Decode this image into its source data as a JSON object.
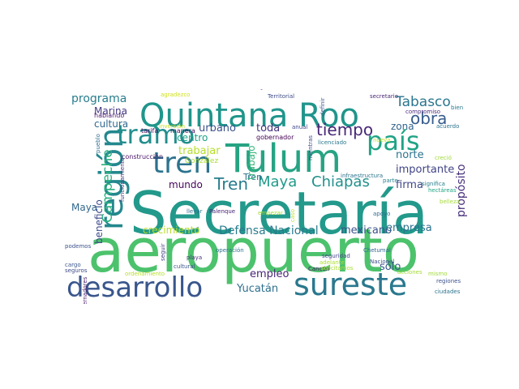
{
  "words": [
    {
      "text": "aeropuerto",
      "color": "#4cc26c"
    },
    {
      "text": "Secretaría",
      "color": "#22998b"
    },
    {
      "text": "Tulum",
      "color": "#26a383"
    },
    {
      "text": "Quintana Roo",
      "color": "#1f958b"
    },
    {
      "text": "sureste",
      "color": "#2a788e"
    },
    {
      "text": "desarrollo",
      "color": "#39568c"
    },
    {
      "text": "región",
      "color": "#23888e"
    },
    {
      "text": "tren",
      "color": "#2c738e"
    },
    {
      "text": "tramo",
      "color": "#218e8d"
    },
    {
      "text": "país",
      "color": "#20a386"
    },
    {
      "text": "Tabasco",
      "color": "#2a768e"
    },
    {
      "text": "obra",
      "color": "#365c8d"
    },
    {
      "text": "tiempo",
      "color": "#482878"
    },
    {
      "text": "Tren",
      "color": "#287c8e"
    },
    {
      "text": "Maya",
      "color": "#1f9a8a"
    },
    {
      "text": "Chiapas",
      "color": "#21918c"
    },
    {
      "text": "Campeche",
      "color": "#2ab07f"
    },
    {
      "text": "programa",
      "color": "#287d8e"
    },
    {
      "text": "Marina",
      "color": "#443983"
    },
    {
      "text": "cultura",
      "color": "#31688e"
    },
    {
      "text": "urbano",
      "color": "#3b528b"
    },
    {
      "text": "toda",
      "color": "#46327e"
    },
    {
      "text": "zona",
      "color": "#33638d"
    },
    {
      "text": "norte",
      "color": "#2c728e"
    },
    {
      "text": "importante",
      "color": "#414487"
    },
    {
      "text": "firma",
      "color": "#3f4788"
    },
    {
      "text": "propósito",
      "color": "#472d7b"
    },
    {
      "text": "trabajar",
      "color": "#b5de2b"
    },
    {
      "text": "centro",
      "color": "#1fa188"
    },
    {
      "text": "González",
      "color": "#addc30"
    },
    {
      "text": "Tren",
      "color": "#2d718e"
    },
    {
      "text": "mundo",
      "color": "#450559"
    },
    {
      "text": "trabajo",
      "color": "#35b779"
    },
    {
      "text": "Maya",
      "color": "#31688e"
    },
    {
      "text": "beneficio",
      "color": "#3e4989"
    },
    {
      "text": "crecimiento",
      "color": "#b8de29"
    },
    {
      "text": "Defensa Nacional",
      "color": "#297b8e"
    },
    {
      "text": "mexicano",
      "color": "#3b528b"
    },
    {
      "text": "empresa",
      "color": "#2c718e"
    },
    {
      "text": "empleo",
      "color": "#482475"
    },
    {
      "text": "sólo",
      "color": "#39568c"
    },
    {
      "text": "Yucatán",
      "color": "#2e6f8e"
    },
    {
      "text": "gobernador",
      "color": "#440154"
    },
    {
      "text": "construcción",
      "color": "#481467"
    },
    {
      "text": "tarifa",
      "color": "#470e61"
    },
    {
      "text": "manera",
      "color": "#471063"
    },
    {
      "text": "agradezco",
      "color": "#d0e11c"
    },
    {
      "text": "entregar",
      "color": "#46075a"
    },
    {
      "text": "Territorial",
      "color": "#3e4a89"
    },
    {
      "text": "secretario",
      "color": "#482576"
    },
    {
      "text": "bien",
      "color": "#2a788e"
    },
    {
      "text": "compromiso",
      "color": "#472a7a"
    },
    {
      "text": "acuerdo",
      "color": "#2c738e"
    },
    {
      "text": "hablando",
      "color": "#481a6c"
    },
    {
      "text": "anual",
      "color": "#3e4989"
    },
    {
      "text": "definir",
      "color": "#3b528b"
    },
    {
      "text": "inversión",
      "color": "#c2df23"
    },
    {
      "text": "pueblo",
      "color": "#2e6e8e"
    },
    {
      "text": "infraestructura",
      "color": "#2c738e"
    },
    {
      "text": "parte",
      "color": "#26828e"
    },
    {
      "text": "significa",
      "color": "#277f8e"
    },
    {
      "text": "creció",
      "color": "#9fda3a"
    },
    {
      "text": "hectáreas",
      "color": "#21a585"
    },
    {
      "text": "belleza",
      "color": "#a5db36"
    },
    {
      "text": "mientras",
      "color": "#3f4788"
    },
    {
      "text": "nueva",
      "color": "#c8e020"
    },
    {
      "text": "licenciado",
      "color": "#2a788e"
    },
    {
      "text": "Fuerzas Armadas",
      "color": "#a8db34"
    },
    {
      "text": "funcionamiento",
      "color": "#46327e"
    },
    {
      "text": "llevar",
      "color": "#2f6c8e"
    },
    {
      "text": "empezar",
      "color": "#a2da37"
    },
    {
      "text": "caso",
      "color": "#bddf26"
    },
    {
      "text": "apoyo",
      "color": "#2e6e8e"
    },
    {
      "text": "podemos",
      "color": "#3b528b"
    },
    {
      "text": "seguir",
      "color": "#443b84"
    },
    {
      "text": "playa",
      "color": "#472f7d"
    },
    {
      "text": "Palenque",
      "color": "#482475"
    },
    {
      "text": "operación",
      "color": "#2e6f8e"
    },
    {
      "text": "seguridad",
      "color": "#414487"
    },
    {
      "text": "Chetumal",
      "color": "#31688e"
    },
    {
      "text": "Nacional",
      "color": "#3b528b"
    },
    {
      "text": "adelante",
      "color": "#addc30"
    },
    {
      "text": "Cancún",
      "color": "#481467"
    },
    {
      "text": "solicitamos",
      "color": "#aadc32"
    },
    {
      "text": "acciones",
      "color": "#a5db36"
    },
    {
      "text": "mismo",
      "color": "#a0da39"
    },
    {
      "text": "regiones",
      "color": "#3b528b"
    },
    {
      "text": "ciudades",
      "color": "#2c738e"
    },
    {
      "text": "cargo",
      "color": "#39568c"
    },
    {
      "text": "seguros",
      "color": "#3e4a89"
    },
    {
      "text": "ordenamiento",
      "color": "#b5de2b"
    },
    {
      "text": "cultural",
      "color": "#3b528b"
    },
    {
      "text": "gobernadores",
      "color": "#481a6c"
    }
  ]
}
